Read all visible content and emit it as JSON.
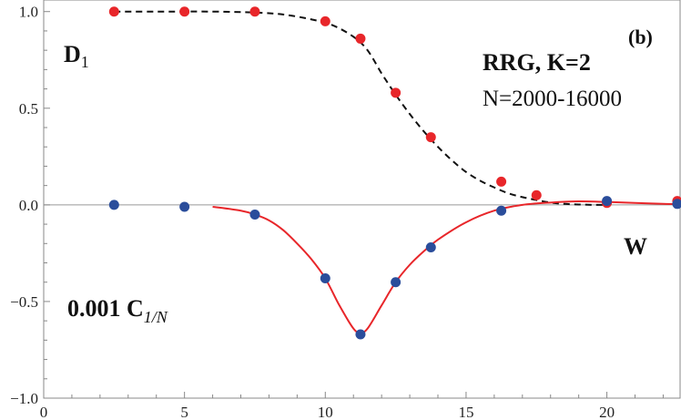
{
  "chart_data": {
    "type": "scatter",
    "panel_label": "(b)",
    "xlim": [
      0,
      22.6
    ],
    "ylim": [
      -1.0,
      1.06
    ],
    "x_ticks": [
      0,
      5,
      10,
      15,
      20
    ],
    "y_ticks": [
      -1.0,
      -0.5,
      0.0,
      0.5,
      1.0
    ],
    "x_tick_labels": [
      "0",
      "5",
      "10",
      "15",
      "20"
    ],
    "y_tick_labels": [
      "−1.0",
      "−0.5",
      "0.0",
      "0.5",
      "1.0"
    ],
    "annotations": {
      "d1_main": "D",
      "d1_sub": "1",
      "c_coef": "0.001 C",
      "c_sub": "1/N",
      "model": "RRG,  K=2",
      "sizes": "N=2000-16000",
      "w_axis": "W"
    },
    "series": [
      {
        "color": "#e8262a",
        "x": [
          2.5,
          5,
          7.5,
          10,
          11.25,
          12.5,
          13.75,
          16.25,
          17.5,
          20,
          22.5
        ],
        "y": [
          1.0,
          1.0,
          1.0,
          0.95,
          0.86,
          0.58,
          0.35,
          0.12,
          0.05,
          0.01,
          0.02
        ]
      },
      {
        "color": "#2a4d9b",
        "x": [
          2.5,
          5,
          7.5,
          10,
          11.25,
          12.5,
          13.75,
          16.25,
          20,
          22.5
        ],
        "y": [
          0.0,
          -0.01,
          -0.05,
          -0.38,
          -0.67,
          -0.4,
          -0.22,
          -0.03,
          0.02,
          0.005
        ]
      }
    ],
    "fit_curves": [
      {
        "style": "dashed",
        "color": "#111111",
        "x": [
          2.5,
          4,
          6,
          7.5,
          8.5,
          9.5,
          10.25,
          11,
          11.5,
          12,
          12.5,
          13,
          13.5,
          14,
          14.5,
          15,
          15.5,
          16,
          16.5,
          17,
          17.5,
          18,
          18.5,
          19,
          19.5,
          20
        ],
        "y": [
          1.0,
          1.0,
          1.0,
          0.995,
          0.985,
          0.96,
          0.93,
          0.87,
          0.8,
          0.68,
          0.57,
          0.47,
          0.38,
          0.3,
          0.23,
          0.17,
          0.125,
          0.09,
          0.06,
          0.04,
          0.025,
          0.012,
          0.005,
          0.002,
          0.0,
          0.0
        ]
      },
      {
        "style": "solid",
        "color": "#e8262a",
        "x": [
          6,
          7,
          7.5,
          8,
          8.5,
          9,
          9.5,
          10,
          10.5,
          11,
          11.25,
          11.5,
          12,
          12.5,
          13,
          13.5,
          14,
          15,
          16,
          17,
          18,
          19,
          20,
          21,
          22,
          22.6
        ],
        "y": [
          -0.01,
          -0.03,
          -0.05,
          -0.08,
          -0.13,
          -0.2,
          -0.28,
          -0.38,
          -0.52,
          -0.64,
          -0.66,
          -0.64,
          -0.52,
          -0.4,
          -0.31,
          -0.24,
          -0.18,
          -0.09,
          -0.03,
          0.0,
          0.012,
          0.018,
          0.015,
          0.01,
          0.005,
          0.003
        ]
      }
    ]
  }
}
